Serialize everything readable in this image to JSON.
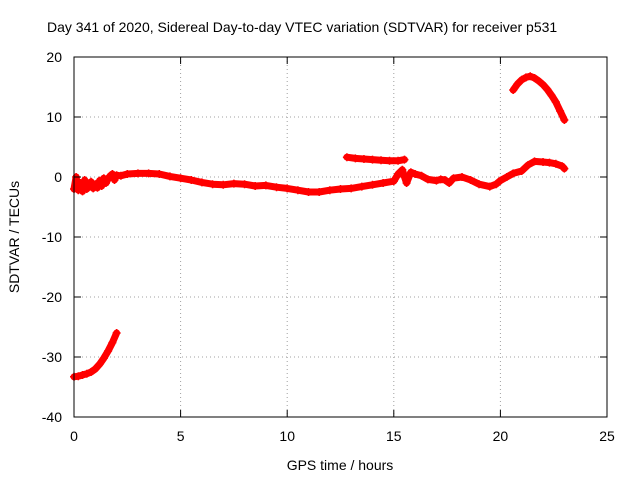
{
  "chart_data": {
    "type": "scatter",
    "title": "Day 341 of 2020, Sidereal Day-to-day VTEC variation (SDTVAR) for receiver p531",
    "xlabel": "GPS time / hours",
    "ylabel": "SDTVAR / TECUs",
    "xlim": [
      0,
      25
    ],
    "ylim": [
      -40,
      20
    ],
    "xticks": [
      0,
      5,
      10,
      15,
      20,
      25
    ],
    "yticks": [
      -40,
      -30,
      -20,
      -10,
      0,
      10,
      20
    ],
    "grid": true,
    "marker": "plus",
    "series_color": "#ff0000",
    "series": [
      {
        "name": "arc-early-low",
        "points": [
          [
            0.0,
            -33.3
          ],
          [
            0.2,
            -33.2
          ],
          [
            0.4,
            -33.0
          ],
          [
            0.6,
            -32.8
          ],
          [
            0.8,
            -32.5
          ],
          [
            1.0,
            -32.0
          ],
          [
            1.2,
            -31.2
          ],
          [
            1.4,
            -30.2
          ],
          [
            1.6,
            -29.0
          ],
          [
            1.8,
            -27.6
          ],
          [
            2.0,
            -26.0
          ]
        ]
      },
      {
        "name": "arc-main",
        "points": [
          [
            0.0,
            -2.0
          ],
          [
            0.1,
            0.0
          ],
          [
            0.2,
            -2.2
          ],
          [
            0.3,
            -1.0
          ],
          [
            0.4,
            -2.4
          ],
          [
            0.5,
            -0.5
          ],
          [
            0.6,
            -2.0
          ],
          [
            0.7,
            -1.6
          ],
          [
            0.8,
            -0.8
          ],
          [
            0.9,
            -1.9
          ],
          [
            1.0,
            -1.2
          ],
          [
            1.1,
            -1.8
          ],
          [
            1.2,
            -0.6
          ],
          [
            1.3,
            -1.5
          ],
          [
            1.4,
            -0.2
          ],
          [
            1.5,
            -1.0
          ],
          [
            1.6,
            -0.3
          ],
          [
            1.7,
            0.2
          ],
          [
            1.8,
            0.5
          ],
          [
            1.9,
            -0.5
          ],
          [
            2.0,
            0.3
          ],
          [
            2.2,
            0.2
          ],
          [
            2.5,
            0.5
          ],
          [
            3.0,
            0.6
          ],
          [
            3.5,
            0.6
          ],
          [
            4.0,
            0.5
          ],
          [
            4.5,
            0.1
          ],
          [
            5.0,
            -0.2
          ],
          [
            5.5,
            -0.5
          ],
          [
            6.0,
            -0.9
          ],
          [
            6.5,
            -1.2
          ],
          [
            7.0,
            -1.3
          ],
          [
            7.5,
            -1.1
          ],
          [
            8.0,
            -1.2
          ],
          [
            8.5,
            -1.5
          ],
          [
            9.0,
            -1.4
          ],
          [
            9.5,
            -1.7
          ],
          [
            10.0,
            -1.9
          ],
          [
            10.5,
            -2.2
          ],
          [
            11.0,
            -2.5
          ],
          [
            11.5,
            -2.5
          ],
          [
            12.0,
            -2.2
          ],
          [
            12.5,
            -2.0
          ],
          [
            13.0,
            -1.9
          ],
          [
            13.5,
            -1.6
          ],
          [
            14.0,
            -1.3
          ],
          [
            14.5,
            -1.0
          ],
          [
            15.0,
            -0.7
          ],
          [
            15.2,
            0.5
          ],
          [
            15.4,
            1.2
          ],
          [
            15.5,
            0.0
          ],
          [
            15.6,
            -1.0
          ],
          [
            15.8,
            0.8
          ],
          [
            16.0,
            0.5
          ],
          [
            16.3,
            0.2
          ],
          [
            16.6,
            -0.4
          ],
          [
            17.0,
            -0.6
          ],
          [
            17.2,
            -0.4
          ],
          [
            17.4,
            -0.5
          ],
          [
            17.6,
            -1.0
          ],
          [
            17.8,
            -0.2
          ],
          [
            18.2,
            0.0
          ],
          [
            18.6,
            -0.5
          ],
          [
            19.0,
            -1.2
          ],
          [
            19.5,
            -1.6
          ],
          [
            19.8,
            -1.2
          ],
          [
            20.0,
            -0.6
          ],
          [
            20.3,
            0.0
          ],
          [
            20.6,
            0.6
          ],
          [
            21.0,
            1.0
          ],
          [
            21.3,
            2.0
          ],
          [
            21.6,
            2.6
          ],
          [
            22.0,
            2.5
          ],
          [
            22.3,
            2.4
          ],
          [
            22.6,
            2.2
          ],
          [
            22.9,
            1.8
          ],
          [
            23.0,
            1.4
          ]
        ]
      },
      {
        "name": "arc-midday-high",
        "points": [
          [
            12.8,
            3.3
          ],
          [
            13.2,
            3.1
          ],
          [
            13.6,
            3.0
          ],
          [
            14.0,
            2.9
          ],
          [
            14.4,
            2.8
          ],
          [
            14.8,
            2.7
          ],
          [
            15.2,
            2.7
          ],
          [
            15.5,
            2.9
          ]
        ]
      },
      {
        "name": "arc-late-high",
        "points": [
          [
            20.6,
            14.5
          ],
          [
            20.8,
            15.5
          ],
          [
            21.0,
            16.2
          ],
          [
            21.2,
            16.6
          ],
          [
            21.4,
            16.8
          ],
          [
            21.6,
            16.5
          ],
          [
            21.8,
            16.0
          ],
          [
            22.0,
            15.4
          ],
          [
            22.2,
            14.6
          ],
          [
            22.4,
            13.6
          ],
          [
            22.6,
            12.5
          ],
          [
            22.8,
            11.0
          ],
          [
            23.0,
            9.5
          ]
        ]
      }
    ]
  }
}
